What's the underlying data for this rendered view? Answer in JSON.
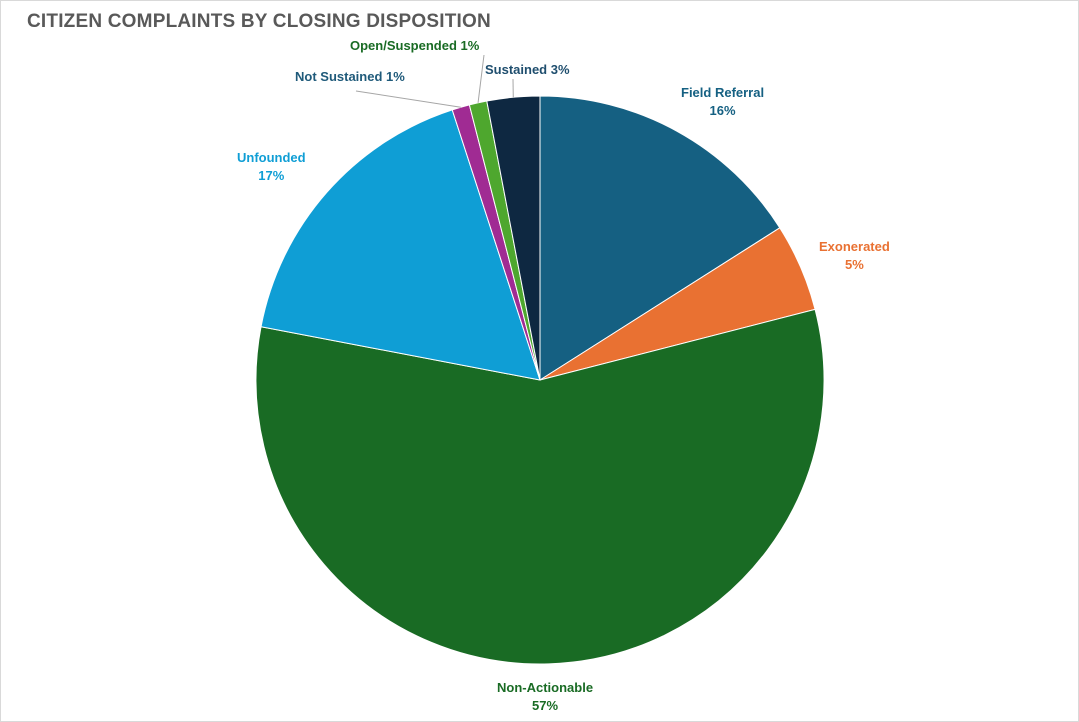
{
  "chart_data": {
    "type": "pie",
    "title": "CITIZEN COMPLAINTS BY CLOSING DISPOSITION",
    "slices": [
      {
        "label": "Field Referral",
        "value": 16,
        "display": "16%",
        "color": "#156082"
      },
      {
        "label": "Exonerated",
        "value": 5,
        "display": "5%",
        "color": "#E97132"
      },
      {
        "label": "Non-Actionable",
        "value": 57,
        "display": "57%",
        "color": "#196B24"
      },
      {
        "label": "Unfounded",
        "value": 17,
        "display": "17%",
        "color": "#0F9ED5"
      },
      {
        "label": "Not Sustained",
        "value": 1,
        "display": "1%",
        "color": "#A02B93"
      },
      {
        "label": "Open/Suspended",
        "value": 1,
        "display": "1%",
        "color": "#4EA72E"
      },
      {
        "label": "Sustained",
        "value": 3,
        "display": "3%",
        "color": "#0E2841"
      }
    ],
    "start_angle": "top, clockwise",
    "legend": "none; data labels outside"
  }
}
